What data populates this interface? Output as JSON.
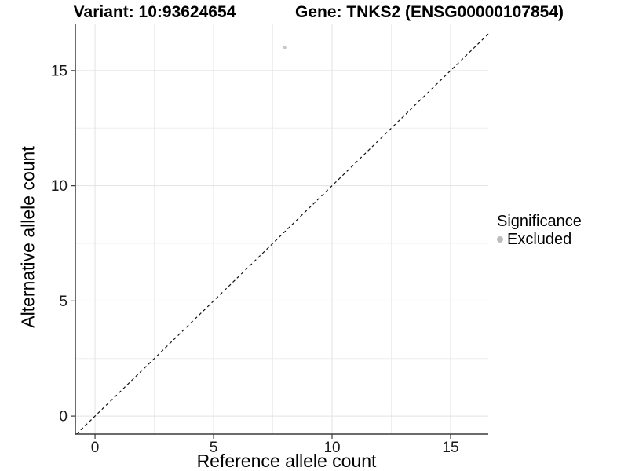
{
  "figure": {
    "titles": {
      "left": "Variant: 10:93624654",
      "right": "Gene: TNKS2 (ENSG00000107854)"
    }
  },
  "chart_data": {
    "type": "scatter",
    "title": "Variant: 10:93624654   Gene: TNKS2 (ENSG00000107854)",
    "xlabel": "Reference allele count",
    "ylabel": "Alternative allele count",
    "xlim": [
      -0.83,
      16.59
    ],
    "ylim": [
      -0.78,
      17.04
    ],
    "xticks": [
      0,
      5,
      10,
      15
    ],
    "yticks": [
      0,
      5,
      10,
      15
    ],
    "x_minor_gridlines": [
      2.5,
      7.5,
      12.5
    ],
    "y_minor_gridlines": [
      2.5,
      7.5,
      12.5
    ],
    "grid": "major+minor",
    "series": [
      {
        "name": "Excluded",
        "marker": "circle",
        "color": "#c9c9c9",
        "points": [
          {
            "x": 8,
            "y": 16
          }
        ]
      }
    ],
    "reference_line": {
      "type": "identity",
      "equation": "y = x",
      "style": "dashed",
      "color": "#111111"
    },
    "legend": {
      "title": "Significance",
      "position": "right",
      "entries": [
        {
          "label": "Excluded",
          "marker": "circle",
          "color": "#bdbdbd"
        }
      ]
    },
    "colors": {
      "background": "#ffffff",
      "grid_major": "#e2e2e2",
      "grid_minor": "#eeeeee",
      "axis_line": "#3a3a3a",
      "tick_mark": "#3a3a3a",
      "tick_label": "#1a1a1a"
    }
  }
}
